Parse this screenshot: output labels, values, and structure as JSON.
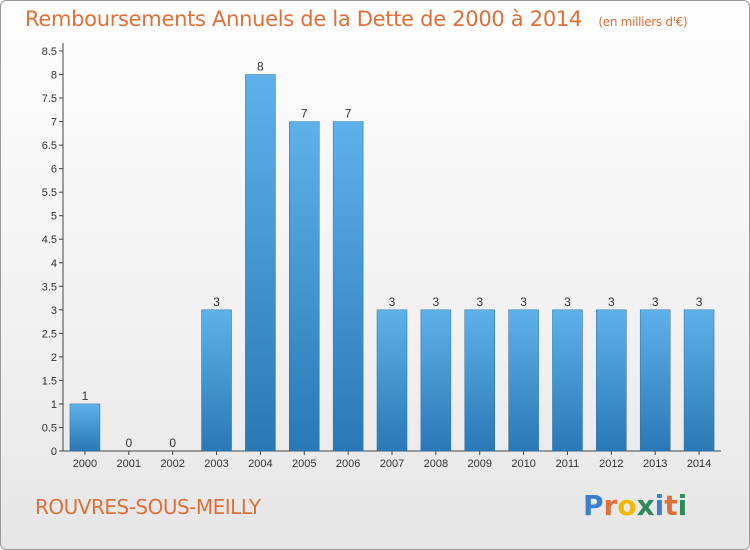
{
  "chart_data": {
    "type": "bar",
    "title": "Remboursements Annuels de la Dette de 2000 à 2014",
    "subtitle": "(en milliers d'€)",
    "categories": [
      "2000",
      "2001",
      "2002",
      "2003",
      "2004",
      "2005",
      "2006",
      "2007",
      "2008",
      "2009",
      "2010",
      "2011",
      "2012",
      "2013",
      "2014"
    ],
    "values": [
      1,
      0,
      0,
      3,
      8,
      7,
      7,
      3,
      3,
      3,
      3,
      3,
      3,
      3,
      3
    ],
    "data_labels": [
      "1",
      "0",
      "0",
      "3",
      "8",
      "7",
      "7",
      "3",
      "3",
      "3",
      "3",
      "3",
      "3",
      "3",
      "3"
    ],
    "ylim": [
      0,
      8.5
    ],
    "yticks": [
      0,
      0.5,
      1,
      1.5,
      2,
      2.5,
      3,
      3.5,
      4,
      4.5,
      5,
      5.5,
      6,
      6.5,
      7,
      7.5,
      8,
      8.5
    ],
    "ytick_labels": [
      "0",
      "0.5",
      "1",
      "1.5",
      "2",
      "2.5",
      "3",
      "3.5",
      "4",
      "4.5",
      "5",
      "5.5",
      "6",
      "6.5",
      "7",
      "7.5",
      "8",
      "8.5"
    ],
    "grid": false,
    "xlabel": "",
    "ylabel": "",
    "colors": {
      "bar_light": "#5fb1ea",
      "bar_dark": "#2a78b6",
      "title": "#e0703a",
      "axis": "#444444"
    }
  },
  "footer": {
    "commune": "ROUVRES-SOUS-MEILLY",
    "brand": "Proxiti",
    "brand_letters": [
      "P",
      "r",
      "o",
      "x",
      "i",
      "t",
      "i"
    ],
    "brand_colors": [
      "#3a7fd0",
      "#e0703a",
      "#f2b705",
      "#2e8b57",
      "#3a7fd0",
      "#e0703a",
      "#2e8b57"
    ]
  }
}
